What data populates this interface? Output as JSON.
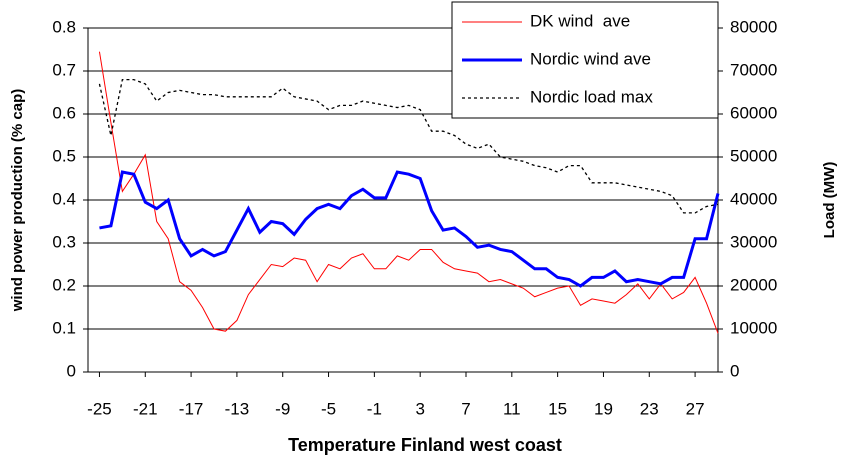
{
  "chart_data": {
    "type": "line",
    "xlabel": "Temperature Finland west coast",
    "ylabel": "wind power production (% cap)",
    "y2label": "Load (MW)",
    "x": [
      -25,
      -24,
      -23,
      -22,
      -21,
      -20,
      -19,
      -18,
      -17,
      -16,
      -15,
      -14,
      -13,
      -12,
      -11,
      -10,
      -9,
      -8,
      -7,
      -6,
      -5,
      -4,
      -3,
      -2,
      -1,
      0,
      1,
      2,
      3,
      4,
      5,
      6,
      7,
      8,
      9,
      10,
      11,
      12,
      13,
      14,
      15,
      16,
      17,
      18,
      19,
      20,
      21,
      22,
      23,
      24,
      25,
      26,
      27,
      28,
      29
    ],
    "xlim": [
      -26,
      29
    ],
    "xticks": [
      -25,
      -21,
      -17,
      -13,
      -9,
      -5,
      -1,
      3,
      7,
      11,
      15,
      19,
      23,
      27
    ],
    "ylim": [
      0,
      0.8
    ],
    "yticks": [
      0,
      0.1,
      0.2,
      0.3,
      0.4,
      0.5,
      0.6,
      0.7,
      0.8
    ],
    "y2lim": [
      0,
      80000
    ],
    "y2ticks": [
      0,
      10000,
      20000,
      30000,
      40000,
      50000,
      60000,
      70000,
      80000
    ],
    "grid": true,
    "legend": "top-right",
    "series": [
      {
        "name": "DK wind  ave",
        "color": "#ff0000",
        "width": 1,
        "values": [
          0.745,
          0.58,
          0.42,
          0.46,
          0.505,
          0.35,
          0.31,
          0.21,
          0.19,
          0.15,
          0.1,
          0.095,
          0.12,
          0.18,
          0.215,
          0.25,
          0.245,
          0.265,
          0.26,
          0.21,
          0.25,
          0.24,
          0.265,
          0.275,
          0.24,
          0.24,
          0.27,
          0.26,
          0.285,
          0.285,
          0.255,
          0.24,
          0.235,
          0.23,
          0.21,
          0.215,
          0.205,
          0.195,
          0.175,
          0.185,
          0.195,
          0.2,
          0.155,
          0.17,
          0.165,
          0.16,
          0.18,
          0.205,
          0.17,
          0.205,
          0.17,
          0.185,
          0.22,
          0.16,
          0.09
        ]
      },
      {
        "name": "Nordic wind ave",
        "color": "#0000ff",
        "width": 3,
        "values": [
          0.335,
          0.34,
          0.465,
          0.46,
          0.395,
          0.38,
          0.4,
          0.31,
          0.27,
          0.285,
          0.27,
          0.28,
          0.33,
          0.38,
          0.325,
          0.35,
          0.345,
          0.32,
          0.355,
          0.38,
          0.39,
          0.38,
          0.41,
          0.425,
          0.405,
          0.405,
          0.465,
          0.46,
          0.45,
          0.375,
          0.33,
          0.335,
          0.315,
          0.29,
          0.295,
          0.285,
          0.28,
          0.26,
          0.24,
          0.24,
          0.22,
          0.215,
          0.2,
          0.22,
          0.22,
          0.235,
          0.21,
          0.215,
          0.21,
          0.205,
          0.22,
          0.22,
          0.31,
          0.31,
          0.415
        ]
      },
      {
        "name": "Nordic load max",
        "color": "#000000",
        "width": 1.3,
        "dash": true,
        "axis": "y2",
        "values": [
          67000,
          55000,
          68000,
          68000,
          67000,
          63000,
          65000,
          65500,
          65000,
          64500,
          64500,
          64000,
          64000,
          64000,
          64000,
          64000,
          66000,
          64000,
          63500,
          63000,
          61000,
          62000,
          62000,
          63000,
          62500,
          62000,
          61500,
          62000,
          61000,
          56000,
          56000,
          55000,
          53000,
          52000,
          53000,
          50000,
          49500,
          49000,
          48000,
          47500,
          46500,
          48000,
          48000,
          44000,
          44000,
          44000,
          43500,
          43000,
          42500,
          42000,
          41000,
          37000,
          37000,
          38500,
          39000
        ]
      }
    ]
  }
}
